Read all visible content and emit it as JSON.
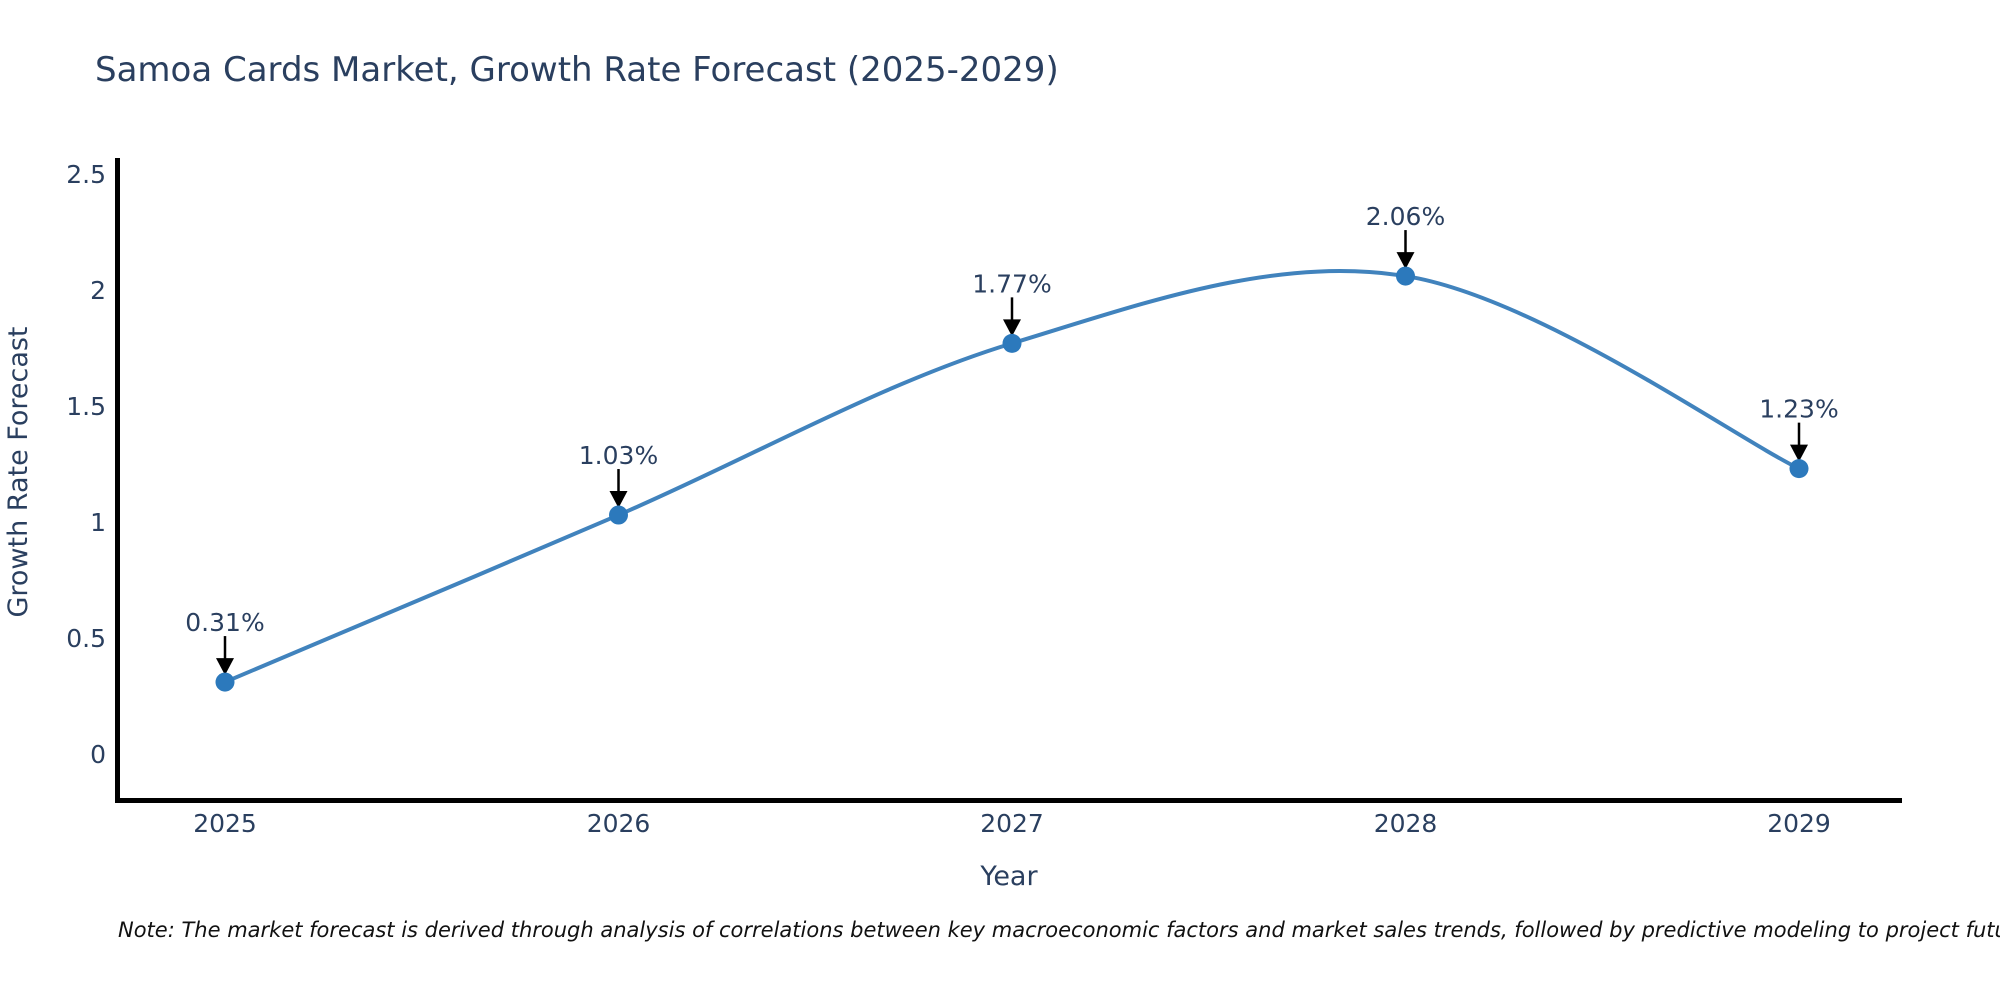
{
  "page": {
    "background": "#ffffff"
  },
  "chart_data": {
    "type": "line",
    "title": "Samoa Cards Market, Growth Rate Forecast (2025-2029)",
    "xlabel": "Year",
    "ylabel": "Growth Rate Forecast",
    "categories": [
      "2025",
      "2026",
      "2027",
      "2028",
      "2029"
    ],
    "series": [
      {
        "name": "Growth Rate Forecast",
        "values": [
          0.31,
          1.03,
          1.77,
          2.06,
          1.23
        ],
        "point_labels": [
          "0.31%",
          "1.03%",
          "1.77%",
          "2.06%",
          "1.23%"
        ]
      }
    ],
    "line_shape": "spline",
    "grid": false,
    "legend_position": "none",
    "ylim": [
      0,
      2.5
    ],
    "yticks": [
      {
        "v": 0,
        "label": "0"
      },
      {
        "v": 0.5,
        "label": "0.5"
      },
      {
        "v": 1,
        "label": "1"
      },
      {
        "v": 1.5,
        "label": "1.5"
      },
      {
        "v": 2,
        "label": "2"
      },
      {
        "v": 2.5,
        "label": "2.5"
      }
    ],
    "colors": {
      "line": "#4183bd",
      "marker": "#2c79bc",
      "axis": "#000000",
      "text": "#2a3f5f",
      "annotation_arrow": "#000000"
    }
  },
  "note": {
    "text": "Note: The market forecast is derived through analysis of correlations between key macroeconomic factors and market sales trends, followed by predictive modeling to project future sales"
  }
}
